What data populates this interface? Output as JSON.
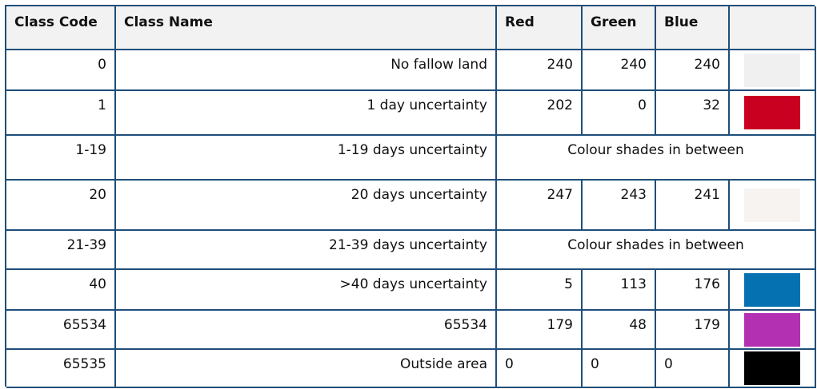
{
  "headers": {
    "class_code": "Class Code",
    "class_name": "Class Name",
    "red": "Red",
    "green": "Green",
    "blue": "Blue",
    "color": ""
  },
  "rows": [
    {
      "code": "0",
      "name": "No fallow land",
      "red": "240",
      "green": "240",
      "blue": "240",
      "color": "#f0f0f0"
    },
    {
      "code": "1",
      "name": "1 day uncertainty",
      "red": "202",
      "green": "0",
      "blue": "32",
      "color": "#ca0020"
    },
    {
      "code": "1-19",
      "name": "1-19 days uncertainty",
      "note": "Colour shades in between"
    },
    {
      "code": "20",
      "name": "20 days uncertainty",
      "red": "247",
      "green": "243",
      "blue": "241",
      "color": "#f7f3f1"
    },
    {
      "code": "21-39",
      "name": "21-39 days uncertainty",
      "note": "Colour shades in between"
    },
    {
      "code": "40",
      "name": ">40 days uncertainty",
      "red": "5",
      "green": "113",
      "blue": "176",
      "color": "#0571b0"
    },
    {
      "code": "65534",
      "name": "65534",
      "red": "179",
      "green": "48",
      "blue": "179",
      "color": "#b330b3"
    },
    {
      "code": "65535",
      "name": "Outside area",
      "red": "0",
      "green": "0",
      "blue": "0",
      "color": "#000000"
    }
  ]
}
